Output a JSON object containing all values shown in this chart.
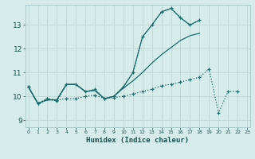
{
  "title": "",
  "xlabel": "Humidex (Indice chaleur)",
  "ylabel": "",
  "background_color": "#d5ecea",
  "grid_color": "#c0dada",
  "line_color": "#1a6b6b",
  "x_ticks": [
    0,
    1,
    2,
    3,
    4,
    5,
    6,
    7,
    8,
    9,
    10,
    11,
    12,
    13,
    14,
    15,
    16,
    17,
    18,
    19,
    20,
    21,
    22,
    23
  ],
  "ylim": [
    8.7,
    13.85
  ],
  "xlim": [
    -0.3,
    23.3
  ],
  "y_ticks": [
    9,
    10,
    11,
    12,
    13
  ],
  "series1_x": [
    0,
    1,
    2,
    3,
    4,
    5,
    6,
    7,
    8,
    9,
    10,
    11,
    12,
    13,
    14,
    15,
    16,
    17,
    18
  ],
  "series1_y": [
    10.4,
    9.7,
    9.9,
    9.8,
    10.5,
    10.5,
    10.2,
    10.3,
    9.9,
    10.0,
    10.4,
    11.0,
    12.5,
    13.0,
    13.55,
    13.7,
    13.3,
    13.0,
    13.2
  ],
  "series2_x": [
    0,
    1,
    2,
    3,
    4,
    5,
    6,
    7,
    8,
    9,
    10,
    11,
    12,
    13,
    14,
    15,
    16,
    17,
    18
  ],
  "series2_y": [
    10.4,
    9.7,
    9.85,
    9.85,
    10.5,
    10.5,
    10.2,
    10.25,
    9.9,
    10.0,
    10.4,
    11.0,
    12.5,
    13.0,
    13.55,
    13.7,
    13.3,
    13.0,
    13.2
  ],
  "series3_x": [
    0,
    1,
    2,
    3,
    4,
    5,
    6,
    7,
    8,
    9,
    10,
    11,
    12,
    13,
    14,
    15,
    16,
    17,
    18
  ],
  "series3_y": [
    10.4,
    9.7,
    9.85,
    9.85,
    10.5,
    10.5,
    10.2,
    10.25,
    9.9,
    10.0,
    10.35,
    10.65,
    11.0,
    11.4,
    11.75,
    12.05,
    12.35,
    12.55,
    12.65
  ],
  "series4_x": [
    0,
    1,
    2,
    3,
    4,
    5,
    6,
    7,
    8,
    9,
    10,
    11,
    12,
    13,
    14,
    15,
    16,
    17,
    18,
    19,
    20,
    21,
    22
  ],
  "series4_y": [
    10.4,
    9.7,
    9.9,
    9.85,
    9.9,
    9.9,
    10.0,
    10.05,
    9.9,
    9.95,
    10.0,
    10.1,
    10.2,
    10.3,
    10.45,
    10.5,
    10.6,
    10.7,
    10.8,
    11.15,
    9.3,
    10.2,
    10.2
  ]
}
